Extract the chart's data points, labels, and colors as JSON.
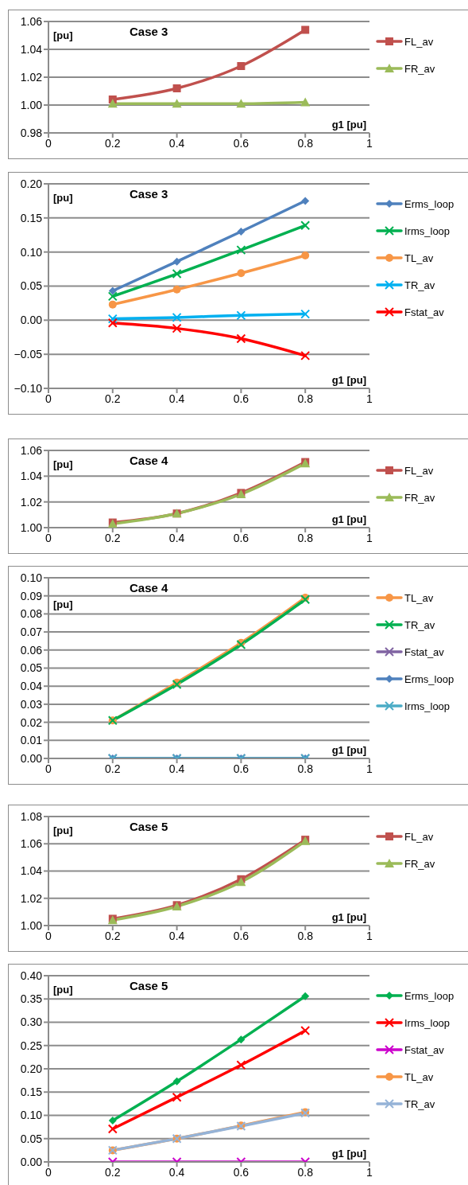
{
  "chart_data": [
    {
      "type": "line",
      "title": "Case 3",
      "annotations": [
        "[pu]",
        "g1 [pu]"
      ],
      "x": [
        0.2,
        0.4,
        0.6,
        0.8
      ],
      "xlim": [
        0,
        1
      ],
      "xticks": [
        0,
        0.2,
        0.4,
        0.6,
        0.8,
        1
      ],
      "ylim": [
        0.98,
        1.06
      ],
      "yticks": [
        {
          "value": 0.98,
          "label": "0.98"
        },
        {
          "value": 1.0,
          "label": "1.00"
        },
        {
          "value": 1.02,
          "label": "1.02"
        },
        {
          "value": 1.04,
          "label": "1.04"
        },
        {
          "value": 1.06,
          "label": "1.06"
        }
      ],
      "grid": "y",
      "legend": "right",
      "series": [
        {
          "name": "FL_av",
          "color": "#c0504d",
          "marker": "square",
          "values": [
            1.004,
            1.012,
            1.028,
            1.054
          ]
        },
        {
          "name": "FR_av",
          "color": "#9bbb59",
          "marker": "triangle",
          "values": [
            1.001,
            1.001,
            1.001,
            1.002
          ]
        }
      ]
    },
    {
      "type": "line",
      "title": "Case 3",
      "annotations": [
        "[pu]",
        "g1 [pu]"
      ],
      "x": [
        0.2,
        0.4,
        0.6,
        0.8
      ],
      "xlim": [
        0,
        1
      ],
      "xticks": [
        0,
        0.2,
        0.4,
        0.6,
        0.8,
        1
      ],
      "ylim": [
        -0.1,
        0.2
      ],
      "yticks": [
        {
          "value": -0.1,
          "label": "−0.10"
        },
        {
          "value": -0.05,
          "label": "−0.05"
        },
        {
          "value": 0,
          "label": "0.00"
        },
        {
          "value": 0.05,
          "label": "0.05"
        },
        {
          "value": 0.1,
          "label": "0.10"
        },
        {
          "value": 0.15,
          "label": "0.15"
        },
        {
          "value": 0.2,
          "label": "0.20"
        }
      ],
      "grid": "y",
      "legend": "right",
      "series": [
        {
          "name": "Erms_loop",
          "color": "#4f81bd",
          "marker": "diamond",
          "values": [
            0.043,
            0.086,
            0.13,
            0.175
          ]
        },
        {
          "name": "Irms_loop",
          "color": "#00b050",
          "marker": "cross",
          "values": [
            0.035,
            0.068,
            0.103,
            0.139
          ]
        },
        {
          "name": "TL_av",
          "color": "#f79646",
          "marker": "circle",
          "values": [
            0.023,
            0.045,
            0.069,
            0.095
          ]
        },
        {
          "name": "TR_av",
          "color": "#00b0f0",
          "marker": "cross",
          "values": [
            0.002,
            0.004,
            0.007,
            0.009
          ]
        },
        {
          "name": "Fstat_av",
          "color": "#ff0000",
          "marker": "cross",
          "values": [
            -0.004,
            -0.012,
            -0.027,
            -0.052
          ]
        }
      ]
    },
    {
      "type": "line",
      "title": "Case 4",
      "annotations": [
        "[pu]",
        "g1 [pu]"
      ],
      "x": [
        0.2,
        0.4,
        0.6,
        0.8
      ],
      "xlim": [
        0,
        1
      ],
      "xticks": [
        0,
        0.2,
        0.4,
        0.6,
        0.8,
        1
      ],
      "ylim": [
        1.0,
        1.06
      ],
      "yticks": [
        {
          "value": 1.0,
          "label": "1.00"
        },
        {
          "value": 1.02,
          "label": "1.02"
        },
        {
          "value": 1.04,
          "label": "1.04"
        },
        {
          "value": 1.06,
          "label": "1.06"
        }
      ],
      "grid": "y",
      "legend": "right",
      "series": [
        {
          "name": "FL_av",
          "color": "#c0504d",
          "marker": "square",
          "values": [
            1.004,
            1.011,
            1.027,
            1.051
          ]
        },
        {
          "name": "FR_av",
          "color": "#9bbb59",
          "marker": "triangle",
          "values": [
            1.003,
            1.011,
            1.026,
            1.05
          ]
        }
      ]
    },
    {
      "type": "line",
      "title": "Case 4",
      "annotations": [
        "[pu]",
        "g1 [pu]"
      ],
      "x": [
        0.2,
        0.4,
        0.6,
        0.8
      ],
      "xlim": [
        0,
        1
      ],
      "xticks": [
        0,
        0.2,
        0.4,
        0.6,
        0.8,
        1
      ],
      "ylim": [
        0,
        0.1
      ],
      "yticks": [
        {
          "value": 0,
          "label": "0.00"
        },
        {
          "value": 0.01,
          "label": "0.01"
        },
        {
          "value": 0.02,
          "label": "0.02"
        },
        {
          "value": 0.03,
          "label": "0.03"
        },
        {
          "value": 0.04,
          "label": "0.04"
        },
        {
          "value": 0.05,
          "label": "0.05"
        },
        {
          "value": 0.06,
          "label": "0.06"
        },
        {
          "value": 0.07,
          "label": "0.07"
        },
        {
          "value": 0.08,
          "label": "0.08"
        },
        {
          "value": 0.09,
          "label": "0.09"
        },
        {
          "value": 0.1,
          "label": "0.10"
        }
      ],
      "grid": "y",
      "legend": "right",
      "series": [
        {
          "name": "TL_av",
          "color": "#f79646",
          "marker": "circle",
          "values": [
            0.021,
            0.042,
            0.064,
            0.089
          ]
        },
        {
          "name": "TR_av",
          "color": "#00b050",
          "marker": "cross",
          "values": [
            0.021,
            0.041,
            0.063,
            0.088
          ]
        },
        {
          "name": "Fstat_av",
          "color": "#8064a2",
          "marker": "cross",
          "values": [
            0,
            0,
            0,
            0
          ]
        },
        {
          "name": "Erms_loop",
          "color": "#4f81bd",
          "marker": "diamond",
          "values": [
            0,
            0,
            0,
            0
          ]
        },
        {
          "name": "Irms_loop",
          "color": "#4bacc6",
          "marker": "cross",
          "values": [
            0,
            0,
            0,
            0
          ]
        }
      ]
    },
    {
      "type": "line",
      "title": "Case 5",
      "annotations": [
        "[pu]",
        "g1 [pu]"
      ],
      "x": [
        0.2,
        0.4,
        0.6,
        0.8
      ],
      "xlim": [
        0,
        1
      ],
      "xticks": [
        0,
        0.2,
        0.4,
        0.6,
        0.8,
        1
      ],
      "ylim": [
        1.0,
        1.08
      ],
      "yticks": [
        {
          "value": 1.0,
          "label": "1.00"
        },
        {
          "value": 1.02,
          "label": "1.02"
        },
        {
          "value": 1.04,
          "label": "1.04"
        },
        {
          "value": 1.06,
          "label": "1.06"
        },
        {
          "value": 1.08,
          "label": "1.08"
        }
      ],
      "grid": "y",
      "legend": "right",
      "series": [
        {
          "name": "FL_av",
          "color": "#c0504d",
          "marker": "square",
          "values": [
            1.005,
            1.015,
            1.034,
            1.063
          ]
        },
        {
          "name": "FR_av",
          "color": "#9bbb59",
          "marker": "triangle",
          "values": [
            1.004,
            1.014,
            1.032,
            1.062
          ]
        }
      ]
    },
    {
      "type": "line",
      "title": "Case 5",
      "annotations": [
        "[pu]",
        "g1 [pu]"
      ],
      "x": [
        0.2,
        0.4,
        0.6,
        0.8
      ],
      "xlim": [
        0,
        1
      ],
      "xticks": [
        0,
        0.2,
        0.4,
        0.6,
        0.8,
        1
      ],
      "ylim": [
        0,
        0.4
      ],
      "yticks": [
        {
          "value": 0,
          "label": "0.00"
        },
        {
          "value": 0.05,
          "label": "0.05"
        },
        {
          "value": 0.1,
          "label": "0.10"
        },
        {
          "value": 0.15,
          "label": "0.15"
        },
        {
          "value": 0.2,
          "label": "0.20"
        },
        {
          "value": 0.25,
          "label": "0.25"
        },
        {
          "value": 0.3,
          "label": "0.30"
        },
        {
          "value": 0.35,
          "label": "0.35"
        },
        {
          "value": 0.4,
          "label": "0.40"
        }
      ],
      "grid": "y",
      "legend": "right",
      "series": [
        {
          "name": "Erms_loop",
          "color": "#00b050",
          "marker": "diamond",
          "values": [
            0.089,
            0.173,
            0.263,
            0.356
          ]
        },
        {
          "name": "Irms_loop",
          "color": "#ff0000",
          "marker": "cross",
          "values": [
            0.071,
            0.139,
            0.208,
            0.282
          ]
        },
        {
          "name": "Fstat_av",
          "color": "#cc00cc",
          "marker": "cross",
          "values": [
            0,
            0,
            0,
            0
          ]
        },
        {
          "name": "TL_av",
          "color": "#f79646",
          "marker": "circle",
          "values": [
            0.025,
            0.05,
            0.078,
            0.107
          ]
        },
        {
          "name": "TR_av",
          "color": "#95b3d7",
          "marker": "cross",
          "values": [
            0.025,
            0.05,
            0.077,
            0.105
          ]
        }
      ]
    }
  ]
}
